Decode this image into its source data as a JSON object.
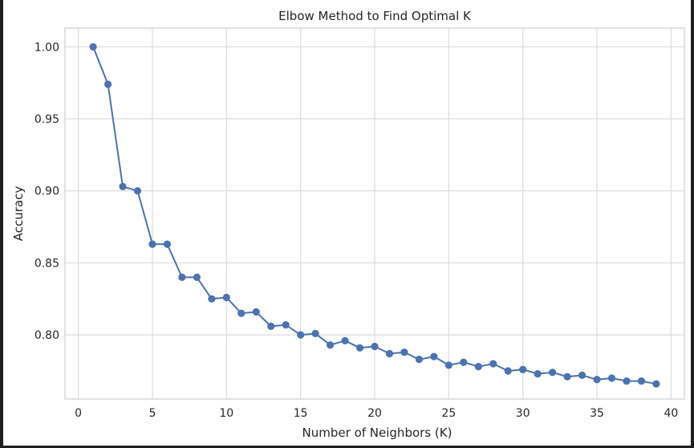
{
  "chart_data": {
    "type": "line",
    "title": "Elbow Method to Find Optimal K",
    "xlabel": "Number of Neighbors (K)",
    "ylabel": "Accuracy",
    "xlim": [
      -0.9,
      40.9
    ],
    "ylim": [
      0.7555,
      1.013
    ],
    "xticks": [
      0,
      5,
      10,
      15,
      20,
      25,
      30,
      35,
      40
    ],
    "yticks": [
      0.8,
      0.85,
      0.9,
      0.95,
      1.0
    ],
    "xtick_labels": [
      "0",
      "5",
      "10",
      "15",
      "20",
      "25",
      "30",
      "35",
      "40"
    ],
    "ytick_labels": [
      "0.80",
      "0.85",
      "0.90",
      "0.95",
      "1.00"
    ],
    "grid": true,
    "color": "#4c72b0",
    "series": [
      {
        "x": [
          1,
          2,
          3,
          4,
          5,
          6,
          7,
          8,
          9,
          10,
          11,
          12,
          13,
          14,
          15,
          16,
          17,
          18,
          19,
          20,
          21,
          22,
          23,
          24,
          25,
          26,
          27,
          28,
          29,
          30,
          31,
          32,
          33,
          34,
          35,
          36,
          37,
          38,
          39
        ],
        "values": [
          1.0,
          0.974,
          0.903,
          0.9,
          0.863,
          0.863,
          0.84,
          0.84,
          0.825,
          0.826,
          0.815,
          0.816,
          0.806,
          0.807,
          0.8,
          0.801,
          0.793,
          0.796,
          0.791,
          0.792,
          0.787,
          0.788,
          0.783,
          0.785,
          0.779,
          0.781,
          0.778,
          0.78,
          0.775,
          0.776,
          0.773,
          0.774,
          0.771,
          0.772,
          0.769,
          0.77,
          0.768,
          0.768,
          0.766
        ]
      }
    ]
  }
}
